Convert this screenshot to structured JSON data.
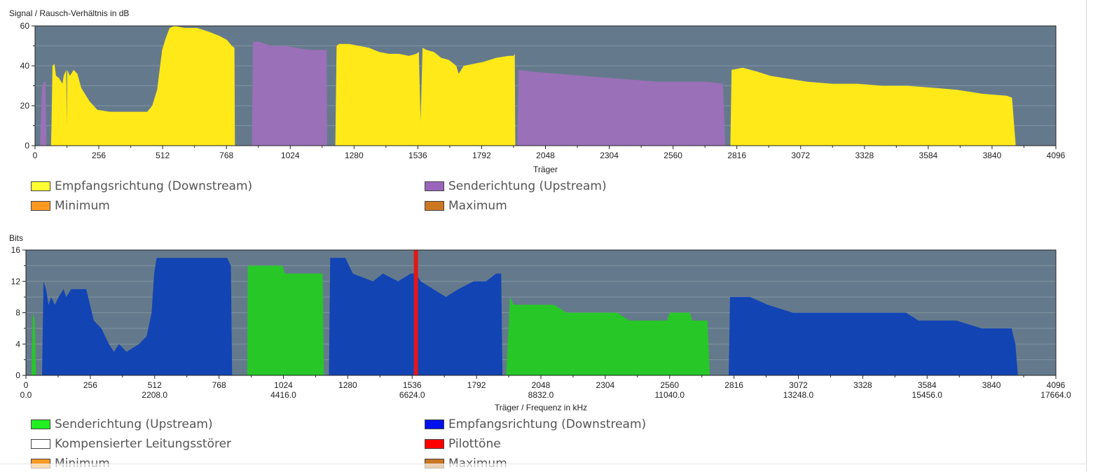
{
  "colors": {
    "plot_bg": "#647a8c",
    "grid": "#8193a2",
    "snr_down": "#ffe919",
    "snr_up": "#9a70b8",
    "bits_up": "#27c727",
    "bits_down": "#1244b4",
    "pilot": "#e11818",
    "legend_yellow": "#ffff33",
    "legend_purple": "#9966bb",
    "legend_orange": "#ff9922",
    "legend_brown": "#cc7722",
    "legend_green": "#22ee22",
    "legend_blue": "#0011ee",
    "legend_white": "#ffffff",
    "legend_red": "#ff0000"
  },
  "chart_data": [
    {
      "type": "area",
      "title": "Signal / Rausch-Verhältnis in dB",
      "xlabel": "Träger",
      "ylabel": "Signal / Rausch-Verhältnis in dB",
      "xlim": [
        0,
        4096
      ],
      "ylim": [
        0,
        60
      ],
      "x_ticks": [
        0,
        256,
        512,
        768,
        1024,
        1280,
        1536,
        1792,
        2048,
        2304,
        2560,
        2816,
        3072,
        3328,
        3584,
        3840,
        4096
      ],
      "y_ticks": [
        0,
        20,
        40,
        60
      ],
      "grid": true,
      "legend": [
        "Empfangsrichtung (Downstream)",
        "Senderichtung (Upstream)",
        "Minimum",
        "Maximum"
      ],
      "series": [
        {
          "name": "Empfangsrichtung (Downstream)",
          "color_key": "snr_down",
          "points": [
            [
              64,
              0
            ],
            [
              66,
              10
            ],
            [
              70,
              40
            ],
            [
              78,
              41
            ],
            [
              84,
              35
            ],
            [
              96,
              34
            ],
            [
              110,
              31
            ],
            [
              115,
              35
            ],
            [
              125,
              38
            ],
            [
              127,
              10
            ],
            [
              129,
              38
            ],
            [
              140,
              35
            ],
            [
              155,
              38
            ],
            [
              170,
              36
            ],
            [
              185,
              29
            ],
            [
              200,
              26
            ],
            [
              220,
              22
            ],
            [
              250,
              18
            ],
            [
              300,
              17
            ],
            [
              350,
              17
            ],
            [
              400,
              17
            ],
            [
              450,
              17
            ],
            [
              470,
              20
            ],
            [
              490,
              28
            ],
            [
              510,
              48
            ],
            [
              525,
              54
            ],
            [
              540,
              59
            ],
            [
              560,
              60
            ],
            [
              600,
              59
            ],
            [
              650,
              59
            ],
            [
              700,
              57
            ],
            [
              740,
              55
            ],
            [
              770,
              53
            ],
            [
              790,
              50
            ],
            [
              800,
              49
            ],
            [
              802,
              0
            ]
          ]
        },
        {
          "name": "Senderichtung (Upstream)",
          "color_key": "snr_up",
          "points": [
            [
              20,
              0
            ],
            [
              28,
              29
            ],
            [
              36,
              32
            ],
            [
              42,
              32
            ],
            [
              46,
              0
            ]
          ]
        },
        {
          "name": "Senderichtung (Upstream)",
          "color_key": "snr_up",
          "points": [
            [
              870,
              0
            ],
            [
              874,
              52
            ],
            [
              900,
              52
            ],
            [
              950,
              50
            ],
            [
              1000,
              50
            ],
            [
              1050,
              49
            ],
            [
              1100,
              48
            ],
            [
              1150,
              48
            ],
            [
              1170,
              48
            ],
            [
              1172,
              0
            ]
          ]
        },
        {
          "name": "Empfangsrichtung (Downstream)",
          "color_key": "snr_down",
          "points": [
            [
              1205,
              0
            ],
            [
              1210,
              50
            ],
            [
              1220,
              51
            ],
            [
              1260,
              51
            ],
            [
              1300,
              50
            ],
            [
              1340,
              49
            ],
            [
              1380,
              47
            ],
            [
              1420,
              46
            ],
            [
              1460,
              46
            ],
            [
              1500,
              45
            ],
            [
              1530,
              46
            ],
            [
              1540,
              47
            ],
            [
              1547,
              12
            ],
            [
              1555,
              49
            ],
            [
              1570,
              48
            ],
            [
              1600,
              47
            ],
            [
              1630,
              44
            ],
            [
              1660,
              43
            ],
            [
              1690,
              40
            ],
            [
              1700,
              36
            ],
            [
              1720,
              40
            ],
            [
              1760,
              41
            ],
            [
              1800,
              42
            ],
            [
              1850,
              44
            ],
            [
              1900,
              45
            ],
            [
              1920,
              45
            ],
            [
              1925,
              46
            ],
            [
              1927,
              0
            ]
          ]
        },
        {
          "name": "Senderichtung (Upstream)",
          "color_key": "snr_up",
          "points": [
            [
              1935,
              0
            ],
            [
              1940,
              38
            ],
            [
              2000,
              37
            ],
            [
              2100,
              36
            ],
            [
              2200,
              35
            ],
            [
              2300,
              34
            ],
            [
              2400,
              33
            ],
            [
              2500,
              32
            ],
            [
              2600,
              32
            ],
            [
              2700,
              32
            ],
            [
              2760,
              31
            ],
            [
              2770,
              0
            ]
          ]
        },
        {
          "name": "Empfangsrichtung (Downstream)",
          "color_key": "snr_down",
          "points": [
            [
              2790,
              0
            ],
            [
              2795,
              38
            ],
            [
              2840,
              39
            ],
            [
              2900,
              37
            ],
            [
              2950,
              35
            ],
            [
              3000,
              34
            ],
            [
              3100,
              32
            ],
            [
              3200,
              31
            ],
            [
              3300,
              31
            ],
            [
              3400,
              30
            ],
            [
              3500,
              30
            ],
            [
              3600,
              29
            ],
            [
              3700,
              28
            ],
            [
              3800,
              26
            ],
            [
              3900,
              25
            ],
            [
              3920,
              24
            ],
            [
              3935,
              0
            ]
          ]
        }
      ]
    },
    {
      "type": "area",
      "title": "Bits",
      "xlabel": "Träger / Frequenz in kHz",
      "ylabel": "Bits",
      "xlim": [
        0,
        4096
      ],
      "ylim": [
        0,
        16
      ],
      "x_ticks": [
        0,
        256,
        512,
        768,
        1024,
        1280,
        1536,
        1792,
        2048,
        2304,
        2560,
        2816,
        3072,
        3328,
        3584,
        3840,
        4096
      ],
      "x_ticks_khz": [
        "0.0",
        "2208.0",
        "4416.0",
        "6624.0",
        "8832.0",
        "11040.0",
        "13248.0",
        "15456.0",
        "17664.0"
      ],
      "y_ticks": [
        0,
        4,
        8,
        12,
        16
      ],
      "grid": true,
      "pilot_tone": 1551,
      "legend": [
        "Senderichtung (Upstream)",
        "Empfangsrichtung (Downstream)",
        "Kompensierter Leitungsstörer",
        "Pilottöne",
        "Minimum",
        "Maximum"
      ],
      "series": [
        {
          "name": "Senderichtung (Upstream)",
          "color_key": "bits_up",
          "points": [
            [
              22,
              0
            ],
            [
              28,
              8
            ],
            [
              35,
              7
            ],
            [
              40,
              0
            ]
          ]
        },
        {
          "name": "Empfangsrichtung (Downstream)",
          "color_key": "bits_down",
          "points": [
            [
              64,
              0
            ],
            [
              70,
              12
            ],
            [
              80,
              11
            ],
            [
              90,
              9
            ],
            [
              100,
              10
            ],
            [
              115,
              9
            ],
            [
              130,
              10
            ],
            [
              150,
              11
            ],
            [
              160,
              10
            ],
            [
              180,
              11
            ],
            [
              240,
              11
            ],
            [
              270,
              7
            ],
            [
              300,
              6
            ],
            [
              330,
              4
            ],
            [
              350,
              3
            ],
            [
              370,
              4
            ],
            [
              400,
              3
            ],
            [
              450,
              4
            ],
            [
              480,
              5
            ],
            [
              500,
              8
            ],
            [
              510,
              13
            ],
            [
              520,
              15
            ],
            [
              800,
              15
            ],
            [
              815,
              14
            ],
            [
              820,
              0
            ]
          ]
        },
        {
          "name": "Senderichtung (Upstream)",
          "color_key": "bits_up",
          "points": [
            [
              880,
              0
            ],
            [
              882,
              14
            ],
            [
              1020,
              14
            ],
            [
              1030,
              13
            ],
            [
              1180,
              13
            ],
            [
              1185,
              0
            ]
          ]
        },
        {
          "name": "Empfangsrichtung (Downstream)",
          "color_key": "bits_down",
          "points": [
            [
              1205,
              0
            ],
            [
              1210,
              15
            ],
            [
              1270,
              15
            ],
            [
              1300,
              13
            ],
            [
              1380,
              12
            ],
            [
              1420,
              13
            ],
            [
              1480,
              12
            ],
            [
              1530,
              13
            ],
            [
              1551,
              13
            ],
            [
              1570,
              12
            ],
            [
              1620,
              11
            ],
            [
              1670,
              10
            ],
            [
              1720,
              11
            ],
            [
              1780,
              12
            ],
            [
              1830,
              12
            ],
            [
              1870,
              13
            ],
            [
              1890,
              13
            ],
            [
              1895,
              0
            ]
          ]
        },
        {
          "name": "Senderichtung (Upstream)",
          "color_key": "bits_up",
          "points": [
            [
              1910,
              0
            ],
            [
              1925,
              10
            ],
            [
              1940,
              9
            ],
            [
              2100,
              9
            ],
            [
              2150,
              8
            ],
            [
              2350,
              8
            ],
            [
              2400,
              7
            ],
            [
              2550,
              7
            ],
            [
              2560,
              8
            ],
            [
              2640,
              8
            ],
            [
              2650,
              7
            ],
            [
              2710,
              7
            ],
            [
              2720,
              0
            ]
          ]
        },
        {
          "name": "Empfangsrichtung (Downstream)",
          "color_key": "bits_down",
          "points": [
            [
              2795,
              0
            ],
            [
              2800,
              10
            ],
            [
              2880,
              10
            ],
            [
              2950,
              9
            ],
            [
              3050,
              8
            ],
            [
              3150,
              8
            ],
            [
              3250,
              8
            ],
            [
              3300,
              8
            ],
            [
              3400,
              8
            ],
            [
              3500,
              8
            ],
            [
              3550,
              7
            ],
            [
              3700,
              7
            ],
            [
              3800,
              6
            ],
            [
              3920,
              6
            ],
            [
              3935,
              4
            ],
            [
              3945,
              0
            ]
          ]
        }
      ]
    }
  ],
  "legend1": {
    "items": [
      {
        "label": "Empfangsrichtung (Downstream)",
        "color_key": "legend_yellow"
      },
      {
        "label": "Senderichtung (Upstream)",
        "color_key": "legend_purple"
      },
      {
        "label": "Minimum",
        "color_key": "legend_orange"
      },
      {
        "label": "Maximum",
        "color_key": "legend_brown"
      }
    ]
  },
  "legend2": {
    "items": [
      {
        "label": "Senderichtung (Upstream)",
        "color_key": "legend_green"
      },
      {
        "label": "Empfangsrichtung (Downstream)",
        "color_key": "legend_blue"
      },
      {
        "label": "Kompensierter Leitungsstörer",
        "color_key": "legend_white"
      },
      {
        "label": "Pilottöne",
        "color_key": "legend_red"
      },
      {
        "label": "Minimum",
        "color_key": "legend_orange"
      },
      {
        "label": "Maximum",
        "color_key": "legend_brown"
      }
    ]
  }
}
